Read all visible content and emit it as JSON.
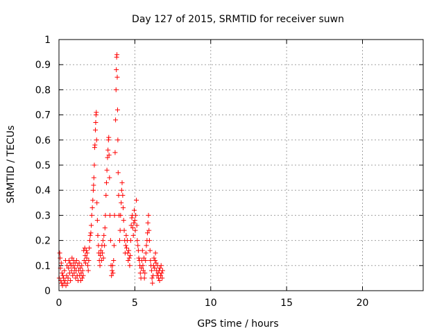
{
  "chart_data": {
    "type": "scatter",
    "title": "Day 127 of 2015, SRMTID for receiver suwn",
    "xlabel": "GPS time / hours",
    "ylabel": "SRMTID / TECUs",
    "xlim": [
      0,
      24
    ],
    "ylim": [
      0,
      1
    ],
    "xticks": [
      0,
      5,
      10,
      15,
      20
    ],
    "yticks": [
      0,
      0.1,
      0.2,
      0.3,
      0.4,
      0.5,
      0.6,
      0.7,
      0.8,
      0.9,
      1
    ],
    "grid": true,
    "marker": "+",
    "colors": {
      "marker": "#ff0000",
      "grid": "#a0a0a0",
      "axis": "#000000"
    },
    "series": [
      {
        "points": [
          [
            0.02,
            0.05
          ],
          [
            0.05,
            0.15
          ],
          [
            0.08,
            0.13
          ],
          [
            0.1,
            0.09
          ],
          [
            0.12,
            0.04
          ],
          [
            0.15,
            0.11
          ],
          [
            0.18,
            0.03
          ],
          [
            0.2,
            0.07
          ],
          [
            0.23,
            0.02
          ],
          [
            0.26,
            0.06
          ],
          [
            0.3,
            0.05
          ],
          [
            0.33,
            0.03
          ],
          [
            0.36,
            0.08
          ],
          [
            0.4,
            0.04
          ],
          [
            0.43,
            0.12
          ],
          [
            0.46,
            0.02
          ],
          [
            0.5,
            0.06
          ],
          [
            0.53,
            0.1
          ],
          [
            0.56,
            0.03
          ],
          [
            0.6,
            0.05
          ],
          [
            0.63,
            0.09
          ],
          [
            0.66,
            0.12
          ],
          [
            0.7,
            0.07
          ],
          [
            0.73,
            0.11
          ],
          [
            0.76,
            0.04
          ],
          [
            0.8,
            0.1
          ],
          [
            0.83,
            0.08
          ],
          [
            0.86,
            0.13
          ],
          [
            0.9,
            0.06
          ],
          [
            0.93,
            0.1
          ],
          [
            0.96,
            0.12
          ],
          [
            1.0,
            0.07
          ],
          [
            1.03,
            0.09
          ],
          [
            1.06,
            0.11
          ],
          [
            1.1,
            0.05
          ],
          [
            1.13,
            0.08
          ],
          [
            1.16,
            0.12
          ],
          [
            1.2,
            0.06
          ],
          [
            1.23,
            0.1
          ],
          [
            1.26,
            0.04
          ],
          [
            1.3,
            0.08
          ],
          [
            1.33,
            0.11
          ],
          [
            1.36,
            0.06
          ],
          [
            1.4,
            0.09
          ],
          [
            1.43,
            0.04
          ],
          [
            1.46,
            0.07
          ],
          [
            1.5,
            0.1
          ],
          [
            1.53,
            0.05
          ],
          [
            1.56,
            0.08
          ],
          [
            1.6,
            0.06
          ],
          [
            1.63,
            0.16
          ],
          [
            1.66,
            0.12
          ],
          [
            1.7,
            0.17
          ],
          [
            1.73,
            0.14
          ],
          [
            1.76,
            0.11
          ],
          [
            1.8,
            0.16
          ],
          [
            1.83,
            0.13
          ],
          [
            1.86,
            0.15
          ],
          [
            1.9,
            0.1
          ],
          [
            1.93,
            0.08
          ],
          [
            1.96,
            0.12
          ],
          [
            2.0,
            0.17
          ],
          [
            2.03,
            0.2
          ],
          [
            2.06,
            0.22
          ],
          [
            2.1,
            0.23
          ],
          [
            2.13,
            0.26
          ],
          [
            2.16,
            0.3
          ],
          [
            2.2,
            0.33
          ],
          [
            2.23,
            0.36
          ],
          [
            2.26,
            0.4
          ],
          [
            2.28,
            0.42
          ],
          [
            2.3,
            0.45
          ],
          [
            2.33,
            0.5
          ],
          [
            2.35,
            0.57
          ],
          [
            2.37,
            0.58
          ],
          [
            2.4,
            0.64
          ],
          [
            2.42,
            0.67
          ],
          [
            2.44,
            0.7
          ],
          [
            2.46,
            0.71
          ],
          [
            2.48,
            0.6
          ],
          [
            2.5,
            0.35
          ],
          [
            2.53,
            0.28
          ],
          [
            2.56,
            0.22
          ],
          [
            2.6,
            0.18
          ],
          [
            2.63,
            0.15
          ],
          [
            2.66,
            0.12
          ],
          [
            2.7,
            0.1
          ],
          [
            2.73,
            0.14
          ],
          [
            2.76,
            0.16
          ],
          [
            2.8,
            0.12
          ],
          [
            2.83,
            0.18
          ],
          [
            2.86,
            0.15
          ],
          [
            2.9,
            0.2
          ],
          [
            2.93,
            0.13
          ],
          [
            2.96,
            0.22
          ],
          [
            3.0,
            0.18
          ],
          [
            3.03,
            0.25
          ],
          [
            3.06,
            0.3
          ],
          [
            3.1,
            0.38
          ],
          [
            3.13,
            0.43
          ],
          [
            3.16,
            0.48
          ],
          [
            3.2,
            0.53
          ],
          [
            3.23,
            0.56
          ],
          [
            3.26,
            0.6
          ],
          [
            3.28,
            0.61
          ],
          [
            3.3,
            0.54
          ],
          [
            3.33,
            0.45
          ],
          [
            3.36,
            0.3
          ],
          [
            3.4,
            0.2
          ],
          [
            3.43,
            0.1
          ],
          [
            3.46,
            0.06
          ],
          [
            3.5,
            0.08
          ],
          [
            3.53,
            0.1
          ],
          [
            3.56,
            0.07
          ],
          [
            3.6,
            0.12
          ],
          [
            3.63,
            0.18
          ],
          [
            3.66,
            0.3
          ],
          [
            3.7,
            0.55
          ],
          [
            3.73,
            0.68
          ],
          [
            3.76,
            0.8
          ],
          [
            3.78,
            0.88
          ],
          [
            3.8,
            0.93
          ],
          [
            3.82,
            0.94
          ],
          [
            3.84,
            0.85
          ],
          [
            3.86,
            0.72
          ],
          [
            3.88,
            0.6
          ],
          [
            3.9,
            0.47
          ],
          [
            3.93,
            0.38
          ],
          [
            3.96,
            0.3
          ],
          [
            4.0,
            0.2
          ],
          [
            4.03,
            0.24
          ],
          [
            4.06,
            0.3
          ],
          [
            4.1,
            0.35
          ],
          [
            4.13,
            0.4
          ],
          [
            4.16,
            0.43
          ],
          [
            4.2,
            0.38
          ],
          [
            4.23,
            0.33
          ],
          [
            4.26,
            0.28
          ],
          [
            4.3,
            0.24
          ],
          [
            4.33,
            0.2
          ],
          [
            4.36,
            0.15
          ],
          [
            4.4,
            0.18
          ],
          [
            4.43,
            0.22
          ],
          [
            4.46,
            0.17
          ],
          [
            4.5,
            0.2
          ],
          [
            4.53,
            0.15
          ],
          [
            4.56,
            0.12
          ],
          [
            4.6,
            0.16
          ],
          [
            4.63,
            0.13
          ],
          [
            4.66,
            0.1
          ],
          [
            4.7,
            0.14
          ],
          [
            4.73,
            0.2
          ],
          [
            4.76,
            0.26
          ],
          [
            4.8,
            0.29
          ],
          [
            4.83,
            0.3
          ],
          [
            4.86,
            0.25
          ],
          [
            4.9,
            0.22
          ],
          [
            4.93,
            0.27
          ],
          [
            4.96,
            0.32
          ],
          [
            5.0,
            0.28
          ],
          [
            5.03,
            0.24
          ],
          [
            5.06,
            0.3
          ],
          [
            5.1,
            0.36
          ],
          [
            5.13,
            0.26
          ],
          [
            5.16,
            0.2
          ],
          [
            5.2,
            0.18
          ],
          [
            5.23,
            0.16
          ],
          [
            5.26,
            0.13
          ],
          [
            5.3,
            0.12
          ],
          [
            5.33,
            0.1
          ],
          [
            5.36,
            0.07
          ],
          [
            5.4,
            0.05
          ],
          [
            5.43,
            0.09
          ],
          [
            5.46,
            0.12
          ],
          [
            5.5,
            0.16
          ],
          [
            5.53,
            0.1
          ],
          [
            5.56,
            0.08
          ],
          [
            5.6,
            0.13
          ],
          [
            5.63,
            0.05
          ],
          [
            5.66,
            0.07
          ],
          [
            5.7,
            0.12
          ],
          [
            5.73,
            0.15
          ],
          [
            5.76,
            0.18
          ],
          [
            5.8,
            0.2
          ],
          [
            5.83,
            0.23
          ],
          [
            5.86,
            0.27
          ],
          [
            5.9,
            0.3
          ],
          [
            5.93,
            0.24
          ],
          [
            5.96,
            0.2
          ],
          [
            6.0,
            0.16
          ],
          [
            6.03,
            0.12
          ],
          [
            6.06,
            0.1
          ],
          [
            6.1,
            0.08
          ],
          [
            6.13,
            0.05
          ],
          [
            6.16,
            0.03
          ],
          [
            6.2,
            0.06
          ],
          [
            6.23,
            0.1
          ],
          [
            6.26,
            0.13
          ],
          [
            6.3,
            0.09
          ],
          [
            6.33,
            0.12
          ],
          [
            6.36,
            0.15
          ],
          [
            6.4,
            0.11
          ],
          [
            6.43,
            0.08
          ],
          [
            6.46,
            0.06
          ],
          [
            6.5,
            0.1
          ],
          [
            6.53,
            0.07
          ],
          [
            6.56,
            0.05
          ],
          [
            6.6,
            0.08
          ],
          [
            6.63,
            0.04
          ],
          [
            6.66,
            0.09
          ],
          [
            6.7,
            0.06
          ],
          [
            6.73,
            0.1
          ],
          [
            6.76,
            0.07
          ],
          [
            6.8,
            0.05
          ],
          [
            6.83,
            0.08
          ]
        ]
      }
    ]
  }
}
